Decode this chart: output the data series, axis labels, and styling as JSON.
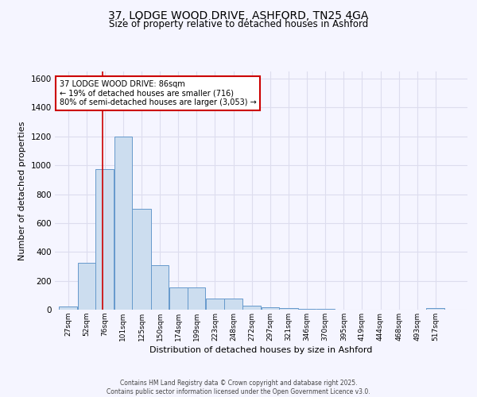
{
  "title_line1": "37, LODGE WOOD DRIVE, ASHFORD, TN25 4GA",
  "title_line2": "Size of property relative to detached houses in Ashford",
  "xlabel": "Distribution of detached houses by size in Ashford",
  "ylabel": "Number of detached properties",
  "bin_labels": [
    "27sqm",
    "52sqm",
    "76sqm",
    "101sqm",
    "125sqm",
    "150sqm",
    "174sqm",
    "199sqm",
    "223sqm",
    "248sqm",
    "272sqm",
    "297sqm",
    "321sqm",
    "346sqm",
    "370sqm",
    "395sqm",
    "419sqm",
    "444sqm",
    "468sqm",
    "493sqm",
    "517sqm"
  ],
  "bin_edges": [
    27,
    52,
    76,
    101,
    125,
    150,
    174,
    199,
    223,
    248,
    272,
    297,
    321,
    346,
    370,
    395,
    419,
    444,
    468,
    493,
    517,
    542
  ],
  "bar_heights": [
    20,
    325,
    975,
    1200,
    700,
    310,
    155,
    155,
    75,
    75,
    25,
    15,
    10,
    5,
    5,
    2,
    2,
    2,
    2,
    2,
    10
  ],
  "bar_color": "#ccddef",
  "bar_edge_color": "#6699cc",
  "vline_x": 86,
  "vline_color": "#cc0000",
  "annotation_text": "37 LODGE WOOD DRIVE: 86sqm\n← 19% of detached houses are smaller (716)\n80% of semi-detached houses are larger (3,053) →",
  "annotation_box_color": "#ffffff",
  "annotation_edge_color": "#cc0000",
  "ylim": [
    0,
    1650
  ],
  "yticks": [
    0,
    200,
    400,
    600,
    800,
    1000,
    1200,
    1400,
    1600
  ],
  "bg_color": "#f5f5ff",
  "grid_color": "#ddddee",
  "footer_line1": "Contains HM Land Registry data © Crown copyright and database right 2025.",
  "footer_line2": "Contains public sector information licensed under the Open Government Licence v3.0."
}
